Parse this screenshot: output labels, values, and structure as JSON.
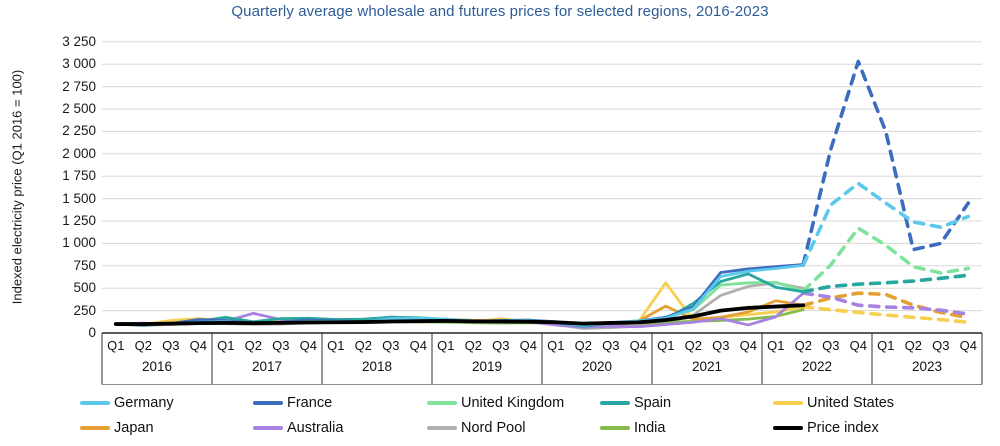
{
  "chart_data": {
    "type": "line",
    "title": "Quarterly average wholesale and futures prices for selected regions, 2016-2023",
    "title_color": "#2E5C97",
    "y_axis_title": "Indexed electricity price (Q1 2016 = 100)",
    "ylim": [
      0,
      3250
    ],
    "y_tick_step": 250,
    "y_tick_labels": [
      "0",
      "250",
      "500",
      "750",
      "1 000",
      "1 250",
      "1 500",
      "1 750",
      "2 000",
      "2 250",
      "2 500",
      "2 750",
      "3 000",
      "3 250"
    ],
    "quarter_labels": [
      "Q1",
      "Q2",
      "Q3",
      "Q4"
    ],
    "years": [
      "2016",
      "2017",
      "2018",
      "2019",
      "2020",
      "2021",
      "2022",
      "2023"
    ],
    "grid": "horizontal",
    "legend_position": "bottom",
    "futures_start_index": 26,
    "series": [
      {
        "name": "Germany",
        "color": "#5BC8EC",
        "values": [
          100,
          95,
          105,
          120,
          125,
          105,
          115,
          130,
          130,
          125,
          160,
          165,
          155,
          135,
          135,
          140,
          120,
          85,
          115,
          135,
          165,
          270,
          630,
          690,
          720,
          755,
          1430,
          1670,
          1450,
          1240,
          1180,
          1300
        ]
      },
      {
        "name": "France",
        "color": "#3B6CBE",
        "values": [
          100,
          90,
          105,
          150,
          140,
          110,
          120,
          145,
          135,
          125,
          150,
          160,
          150,
          130,
          140,
          145,
          125,
          80,
          110,
          135,
          175,
          290,
          675,
          715,
          740,
          765,
          2050,
          3030,
          2250,
          930,
          1000,
          1450
        ]
      },
      {
        "name": "United Kingdom",
        "color": "#7FE39B",
        "values": [
          100,
          95,
          110,
          130,
          125,
          110,
          115,
          135,
          135,
          140,
          165,
          170,
          155,
          135,
          125,
          130,
          115,
          75,
          105,
          130,
          170,
          260,
          535,
          560,
          565,
          470,
          760,
          1170,
          980,
          740,
          670,
          720
        ]
      },
      {
        "name": "Spain",
        "color": "#27A79F",
        "values": [
          100,
          85,
          105,
          130,
          175,
          125,
          160,
          165,
          150,
          155,
          175,
          170,
          150,
          130,
          125,
          130,
          115,
          75,
          110,
          125,
          155,
          330,
          575,
          660,
          510,
          460,
          520,
          545,
          560,
          580,
          610,
          645
        ]
      },
      {
        "name": "United States",
        "color": "#F6CF4E",
        "values": [
          100,
          95,
          140,
          160,
          140,
          120,
          125,
          130,
          135,
          150,
          155,
          140,
          135,
          125,
          160,
          125,
          115,
          90,
          115,
          120,
          560,
          145,
          175,
          205,
          235,
          290,
          260,
          230,
          200,
          175,
          150,
          120
        ]
      },
      {
        "name": "Japan",
        "color": "#E5A033",
        "values": [
          100,
          90,
          100,
          115,
          120,
          110,
          115,
          125,
          130,
          140,
          150,
          160,
          155,
          140,
          135,
          130,
          120,
          95,
          100,
          130,
          300,
          155,
          175,
          235,
          360,
          310,
          390,
          445,
          430,
          310,
          230,
          170
        ]
      },
      {
        "name": "Australia",
        "color": "#A782E0",
        "values": [
          100,
          110,
          95,
          105,
          130,
          220,
          150,
          140,
          145,
          150,
          145,
          140,
          150,
          135,
          130,
          125,
          90,
          65,
          75,
          70,
          95,
          120,
          160,
          90,
          180,
          445,
          400,
          310,
          290,
          280,
          255,
          210
        ]
      },
      {
        "name": "Nord Pool",
        "color": "#B0B0B0",
        "values": [
          100,
          85,
          95,
          110,
          105,
          95,
          100,
          115,
          120,
          130,
          180,
          165,
          155,
          130,
          125,
          135,
          95,
          50,
          60,
          75,
          115,
          200,
          420,
          520,
          560,
          500,
          null,
          null,
          null,
          null,
          null,
          null
        ]
      },
      {
        "name": "India",
        "color": "#86BC4C",
        "values": [
          100,
          95,
          100,
          105,
          110,
          105,
          110,
          115,
          120,
          125,
          130,
          125,
          120,
          115,
          110,
          115,
          110,
          85,
          100,
          110,
          120,
          130,
          140,
          155,
          185,
          260,
          null,
          null,
          null,
          null,
          null,
          null
        ]
      },
      {
        "name": "Price index",
        "color": "#000000",
        "values": [
          100,
          100,
          105,
          110,
          112,
          110,
          113,
          118,
          120,
          122,
          128,
          132,
          135,
          130,
          128,
          126,
          120,
          105,
          112,
          118,
          145,
          185,
          250,
          280,
          295,
          310,
          null,
          null,
          null,
          null,
          null,
          null
        ]
      }
    ],
    "legend_rows": [
      [
        "Germany",
        "France",
        "United Kingdom",
        "Spain",
        "United States"
      ],
      [
        "Japan",
        "Australia",
        "Nord Pool",
        "India",
        "Price index"
      ]
    ]
  }
}
